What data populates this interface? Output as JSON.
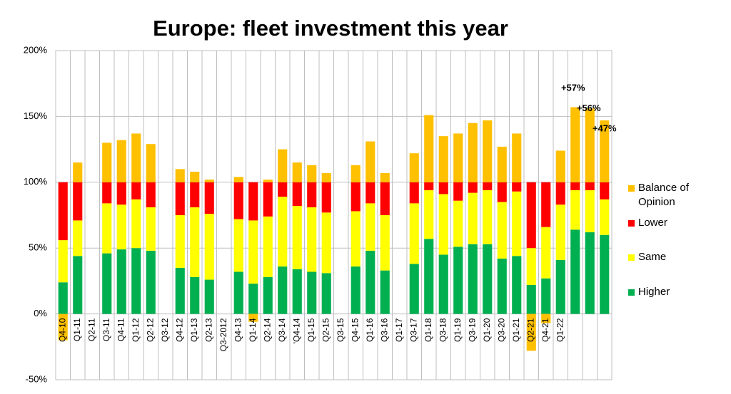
{
  "chart_data": {
    "type": "stacked_bar",
    "title": "Europe: fleet investment this year",
    "categories": [
      "Q4-10",
      "Q1-11",
      "Q2-11",
      "Q3-11",
      "Q4-11",
      "Q1-12",
      "Q2-12",
      "Q3-12",
      "Q4-12",
      "Q1-13",
      "Q2-13",
      "Q3-2012",
      "Q4-13",
      "Q1-14",
      "Q2-14",
      "Q3-14",
      "'Q4-14",
      "Q1-15",
      "Q2-15",
      "Q3-15",
      "Q4-15",
      "Q1-16",
      "Q3-16",
      "Q1-17",
      "Q3-17",
      "Q1-18",
      "Q3-18",
      "Q1-19",
      "Q3-19",
      "Q1-20",
      "Q3-20",
      "Q1-21",
      "Q2-21",
      "Q4-21",
      "Q1-22",
      null,
      null,
      null
    ],
    "series": [
      {
        "name": "Higher",
        "color": "#00b050",
        "values": [
          24,
          44,
          null,
          46,
          49,
          50,
          48,
          null,
          35,
          28,
          26,
          null,
          32,
          23,
          28,
          36,
          34,
          32,
          31,
          null,
          36,
          48,
          33,
          null,
          38,
          57,
          45,
          51,
          53,
          53,
          42,
          44,
          22,
          27,
          41,
          64,
          62,
          60
        ]
      },
      {
        "name": "Same",
        "color": "#ffff00",
        "values": [
          32,
          27,
          null,
          38,
          34,
          37,
          33,
          null,
          40,
          53,
          50,
          null,
          40,
          48,
          46,
          53,
          48,
          49,
          46,
          null,
          42,
          36,
          42,
          null,
          46,
          37,
          46,
          35,
          39,
          41,
          43,
          49,
          28,
          39,
          42,
          30,
          32,
          27
        ]
      },
      {
        "name": "Lower",
        "color": "#ff0000",
        "values": [
          44,
          29,
          null,
          16,
          17,
          13,
          19,
          null,
          25,
          19,
          24,
          null,
          28,
          29,
          26,
          11,
          18,
          19,
          23,
          null,
          22,
          16,
          25,
          null,
          16,
          6,
          9,
          14,
          8,
          6,
          15,
          7,
          50,
          34,
          17,
          6,
          6,
          13
        ]
      },
      {
        "name": "Balance of Opinion",
        "color": "#ffc000",
        "values": [
          -20,
          15,
          null,
          30,
          32,
          37,
          29,
          null,
          10,
          8,
          2,
          null,
          4,
          -6,
          2,
          25,
          15,
          13,
          7,
          null,
          13,
          31,
          7,
          null,
          22,
          51,
          35,
          37,
          45,
          47,
          27,
          37,
          -28,
          -7,
          24,
          57,
          56,
          47
        ],
        "value_labels": [
          null,
          null,
          null,
          null,
          null,
          null,
          null,
          null,
          null,
          null,
          null,
          null,
          null,
          null,
          null,
          null,
          null,
          null,
          null,
          null,
          null,
          null,
          null,
          null,
          null,
          null,
          null,
          null,
          null,
          null,
          null,
          null,
          null,
          null,
          null,
          "+57%",
          "+56%",
          "+47%"
        ]
      }
    ],
    "ylim": [
      -50,
      200
    ],
    "yticks": [
      {
        "value": -50,
        "label": "-50%"
      },
      {
        "value": 0,
        "label": "0%"
      },
      {
        "value": 50,
        "label": "50%"
      },
      {
        "value": 100,
        "label": "100%"
      },
      {
        "value": 150,
        "label": "150%"
      },
      {
        "value": 200,
        "label": "200%"
      }
    ],
    "grid": true,
    "legend": "right"
  }
}
